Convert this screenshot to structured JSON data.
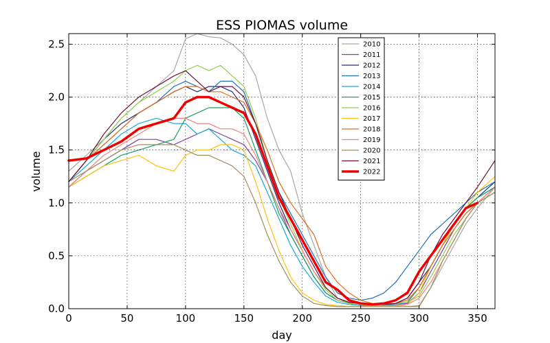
{
  "chart_data": {
    "type": "line",
    "title": "ESS PIOMAS volume",
    "xlabel": "day",
    "ylabel": "volume",
    "xlim": [
      0,
      365
    ],
    "ylim": [
      0,
      2.6
    ],
    "xticks": [
      0,
      50,
      100,
      150,
      200,
      250,
      300,
      350
    ],
    "xtick_labels": [
      "0",
      "50",
      "100",
      "150",
      "200",
      "250",
      "300",
      "350"
    ],
    "yticks": [
      0,
      0.5,
      1.0,
      1.5,
      2.0,
      2.5
    ],
    "ytick_labels": [
      "0.0",
      "0.5",
      "1.0",
      "1.5",
      "2.0",
      "2.5"
    ],
    "grid": true,
    "grid_style": "dotted",
    "legend_position": "top-right",
    "x": [
      0,
      15,
      30,
      45,
      60,
      75,
      90,
      100,
      110,
      120,
      130,
      140,
      150,
      160,
      170,
      180,
      190,
      200,
      210,
      220,
      230,
      240,
      250,
      260,
      270,
      280,
      290,
      300,
      310,
      320,
      330,
      340,
      350,
      365
    ],
    "series": [
      {
        "name": "2010",
        "color": "#a6a6a6",
        "width": 1.2,
        "values": [
          1.3,
          1.45,
          1.6,
          1.8,
          1.95,
          2.1,
          2.25,
          2.55,
          2.6,
          2.57,
          2.56,
          2.5,
          2.4,
          2.2,
          1.8,
          1.5,
          1.3,
          0.9,
          0.6,
          0.3,
          0.1,
          0.05,
          0.04,
          0.03,
          0.02,
          0.02,
          0.02,
          0.03,
          0.2,
          0.4,
          0.6,
          0.8,
          0.95,
          1.15
        ]
      },
      {
        "name": "2011",
        "color": "#7b3fa5",
        "width": 1.2,
        "values": [
          1.15,
          1.3,
          1.4,
          1.5,
          1.6,
          1.6,
          1.55,
          1.6,
          1.65,
          1.7,
          1.65,
          1.6,
          1.55,
          1.4,
          1.2,
          0.95,
          0.7,
          0.5,
          0.3,
          0.15,
          0.08,
          0.05,
          0.04,
          0.04,
          0.04,
          0.04,
          0.05,
          0.15,
          0.35,
          0.55,
          0.75,
          0.9,
          1.0,
          1.15
        ]
      },
      {
        "name": "2012",
        "color": "#1f2e7a",
        "width": 1.2,
        "values": [
          1.2,
          1.4,
          1.6,
          1.75,
          1.85,
          1.95,
          2.05,
          2.1,
          2.05,
          2.1,
          2.1,
          2.05,
          1.9,
          1.6,
          1.3,
          1.0,
          0.75,
          0.55,
          0.35,
          0.2,
          0.1,
          0.06,
          0.05,
          0.04,
          0.04,
          0.05,
          0.1,
          0.25,
          0.4,
          0.6,
          0.8,
          0.95,
          1.05,
          1.2
        ]
      },
      {
        "name": "2013",
        "color": "#1f6fb5",
        "width": 1.2,
        "values": [
          1.2,
          1.4,
          1.55,
          1.7,
          1.85,
          1.95,
          2.1,
          2.15,
          2.1,
          2.05,
          2.15,
          2.15,
          2.05,
          1.75,
          1.4,
          1.1,
          0.9,
          0.7,
          0.5,
          0.3,
          0.15,
          0.1,
          0.08,
          0.1,
          0.15,
          0.25,
          0.4,
          0.55,
          0.7,
          0.8,
          0.9,
          1.0,
          1.1,
          1.2
        ]
      },
      {
        "name": "2014",
        "color": "#17a8d8",
        "width": 1.2,
        "values": [
          1.2,
          1.35,
          1.5,
          1.65,
          1.75,
          1.8,
          1.75,
          1.75,
          1.65,
          1.7,
          1.6,
          1.5,
          1.45,
          1.35,
          1.1,
          0.85,
          0.6,
          0.4,
          0.25,
          0.12,
          0.06,
          0.04,
          0.03,
          0.03,
          0.03,
          0.04,
          0.06,
          0.2,
          0.4,
          0.6,
          0.8,
          0.95,
          1.05,
          1.15
        ]
      },
      {
        "name": "2015",
        "color": "#12a05a",
        "width": 1.2,
        "values": [
          1.15,
          1.25,
          1.35,
          1.45,
          1.5,
          1.55,
          1.6,
          1.8,
          1.85,
          1.9,
          1.9,
          1.9,
          1.8,
          1.5,
          1.2,
          0.9,
          0.7,
          0.5,
          0.3,
          0.15,
          0.08,
          0.05,
          0.04,
          0.04,
          0.04,
          0.05,
          0.06,
          0.2,
          0.4,
          0.6,
          0.8,
          0.95,
          1.05,
          1.15
        ]
      },
      {
        "name": "2016",
        "color": "#8fcf4a",
        "width": 1.2,
        "values": [
          1.2,
          1.4,
          1.6,
          1.8,
          1.95,
          2.05,
          2.15,
          2.25,
          2.3,
          2.25,
          2.3,
          2.2,
          2.1,
          1.8,
          1.4,
          1.05,
          0.8,
          0.55,
          0.35,
          0.18,
          0.08,
          0.05,
          0.04,
          0.04,
          0.04,
          0.05,
          0.06,
          0.12,
          0.3,
          0.5,
          0.7,
          0.85,
          1.0,
          1.1
        ]
      },
      {
        "name": "2017",
        "color": "#ffc20e",
        "width": 1.2,
        "values": [
          1.15,
          1.25,
          1.35,
          1.4,
          1.45,
          1.35,
          1.3,
          1.45,
          1.5,
          1.5,
          1.55,
          1.55,
          1.5,
          1.2,
          0.85,
          0.55,
          0.3,
          0.15,
          0.08,
          0.04,
          0.03,
          0.02,
          0.02,
          0.02,
          0.02,
          0.02,
          0.04,
          0.15,
          0.4,
          0.6,
          0.8,
          0.95,
          1.1,
          1.25
        ]
      },
      {
        "name": "2018",
        "color": "#e06d1a",
        "width": 1.2,
        "values": [
          1.2,
          1.4,
          1.55,
          1.7,
          1.85,
          1.95,
          2.05,
          2.1,
          2.1,
          2.05,
          2.05,
          2.0,
          1.95,
          1.75,
          1.5,
          1.2,
          1.0,
          0.85,
          0.7,
          0.4,
          0.25,
          0.15,
          0.08,
          0.05,
          0.05,
          0.05,
          0.08,
          0.2,
          0.4,
          0.6,
          0.75,
          0.9,
          1.0,
          1.15
        ]
      },
      {
        "name": "2019",
        "color": "#f08080",
        "width": 1.2,
        "values": [
          1.15,
          1.3,
          1.45,
          1.55,
          1.65,
          1.75,
          1.8,
          1.8,
          1.75,
          1.75,
          1.7,
          1.7,
          1.65,
          1.45,
          1.2,
          0.95,
          0.75,
          0.55,
          0.35,
          0.2,
          0.1,
          0.06,
          0.04,
          0.03,
          0.03,
          0.03,
          0.04,
          0.1,
          0.25,
          0.45,
          0.65,
          0.85,
          1.0,
          1.15
        ]
      },
      {
        "name": "2020",
        "color": "#9e8e5a",
        "width": 1.2,
        "values": [
          1.2,
          1.3,
          1.4,
          1.5,
          1.55,
          1.55,
          1.55,
          1.5,
          1.45,
          1.45,
          1.4,
          1.35,
          1.25,
          1.0,
          0.7,
          0.45,
          0.25,
          0.12,
          0.05,
          0.03,
          0.02,
          0.02,
          0.02,
          0.02,
          0.02,
          0.02,
          0.02,
          0.02,
          0.2,
          0.45,
          0.65,
          0.85,
          1.0,
          1.1
        ]
      },
      {
        "name": "2021",
        "color": "#6b0f3a",
        "width": 1.2,
        "values": [
          1.2,
          1.4,
          1.65,
          1.85,
          2.0,
          2.1,
          2.2,
          2.25,
          2.15,
          2.05,
          2.1,
          2.1,
          2.0,
          1.75,
          1.4,
          1.1,
          0.85,
          0.6,
          0.4,
          0.2,
          0.1,
          0.06,
          0.05,
          0.04,
          0.04,
          0.05,
          0.1,
          0.25,
          0.5,
          0.7,
          0.85,
          1.0,
          1.15,
          1.4
        ]
      },
      {
        "name": "2022",
        "color": "#ee0000",
        "width": 3.5,
        "values": [
          1.4,
          1.42,
          1.5,
          1.58,
          1.7,
          1.75,
          1.8,
          1.95,
          2.0,
          2.0,
          1.95,
          1.9,
          1.85,
          1.65,
          1.35,
          1.05,
          0.85,
          0.65,
          0.45,
          0.25,
          0.18,
          0.08,
          0.05,
          0.04,
          0.05,
          0.08,
          0.15,
          0.35,
          0.5,
          0.65,
          0.8,
          0.95,
          1.0,
          null
        ]
      }
    ]
  }
}
